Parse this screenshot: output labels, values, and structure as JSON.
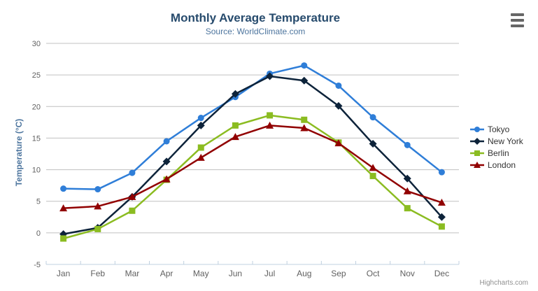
{
  "chart_data": {
    "type": "line",
    "title": "Monthly Average Temperature",
    "subtitle": "Source: WorldClimate.com",
    "xlabel": "",
    "ylabel": "Temperature (°C)",
    "ylim": [
      -5,
      30
    ],
    "yticks": [
      30,
      25,
      20,
      15,
      10,
      5,
      0,
      -5
    ],
    "grid": true,
    "legend_position": "right",
    "categories": [
      "Jan",
      "Feb",
      "Mar",
      "Apr",
      "May",
      "Jun",
      "Jul",
      "Aug",
      "Sep",
      "Oct",
      "Nov",
      "Dec"
    ],
    "series": [
      {
        "name": "Tokyo",
        "color": "#2f7ed8",
        "marker": "circle",
        "values": [
          7.0,
          6.9,
          9.5,
          14.5,
          18.2,
          21.5,
          25.2,
          26.5,
          23.3,
          18.3,
          13.9,
          9.6
        ]
      },
      {
        "name": "New York",
        "color": "#0d233a",
        "marker": "diamond",
        "values": [
          -0.2,
          0.8,
          5.7,
          11.3,
          17.0,
          22.0,
          24.8,
          24.1,
          20.1,
          14.1,
          8.6,
          2.5
        ]
      },
      {
        "name": "Berlin",
        "color": "#8bbc21",
        "marker": "square",
        "values": [
          -0.9,
          0.6,
          3.5,
          8.4,
          13.5,
          17.0,
          18.6,
          17.9,
          14.3,
          9.0,
          3.9,
          1.0
        ]
      },
      {
        "name": "London",
        "color": "#910000",
        "marker": "triangle",
        "values": [
          3.9,
          4.2,
          5.7,
          8.5,
          11.9,
          15.2,
          17.0,
          16.6,
          14.2,
          10.3,
          6.6,
          4.8
        ]
      }
    ]
  },
  "credits": {
    "label": "Highcharts.com"
  },
  "colors": {
    "title": "#274b6d",
    "subtitle": "#4d759e",
    "y_axis_title": "#4d759e",
    "axis_labels": "#606060",
    "grid": "#c0c0c0",
    "axis_line": "#c0d0e0",
    "legend_text": "#333333",
    "credits": "#909090",
    "export_icon": "#666666",
    "background": "#ffffff"
  }
}
